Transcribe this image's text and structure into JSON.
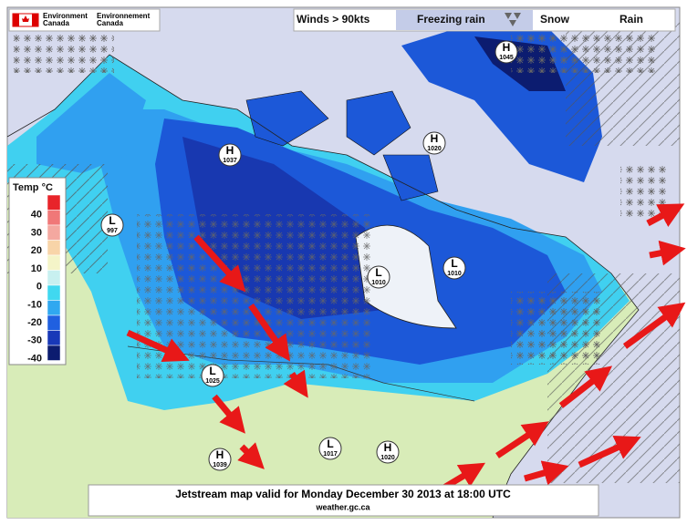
{
  "header": {
    "agency_en": [
      "Environment",
      "Canada"
    ],
    "agency_fr": [
      "Environnement",
      "Canada"
    ]
  },
  "legend": {
    "items": [
      "Winds > 90kts",
      "Freezing rain",
      "Snow",
      "Rain"
    ]
  },
  "temp_scale": {
    "title": "Temp °C",
    "labels": [
      "40",
      "30",
      "20",
      "10",
      "0",
      "-10",
      "-20",
      "-30",
      "-40"
    ],
    "colors": [
      "#e8242a",
      "#f07878",
      "#f4a8a0",
      "#f8d4a8",
      "#f4f4c8",
      "#c8f0f0",
      "#40d8f0",
      "#30a8f0",
      "#2060e0",
      "#1838b8",
      "#0c1c70"
    ]
  },
  "pressure_centers": [
    {
      "letter": "H",
      "value": "1045"
    },
    {
      "letter": "H",
      "value": "1037"
    },
    {
      "letter": "H",
      "value": "1020"
    },
    {
      "letter": "L",
      "value": "997"
    },
    {
      "letter": "L",
      "value": "1010"
    },
    {
      "letter": "L",
      "value": "1010"
    },
    {
      "letter": "L",
      "value": "1025"
    },
    {
      "letter": "L",
      "value": "1017"
    },
    {
      "letter": "H",
      "value": "1039"
    },
    {
      "letter": "H",
      "value": "1020"
    }
  ],
  "caption": {
    "title": "Jetstream map valid for Monday December 30 2013 at 18:00 UTC",
    "source": "weather.gc.ca"
  }
}
